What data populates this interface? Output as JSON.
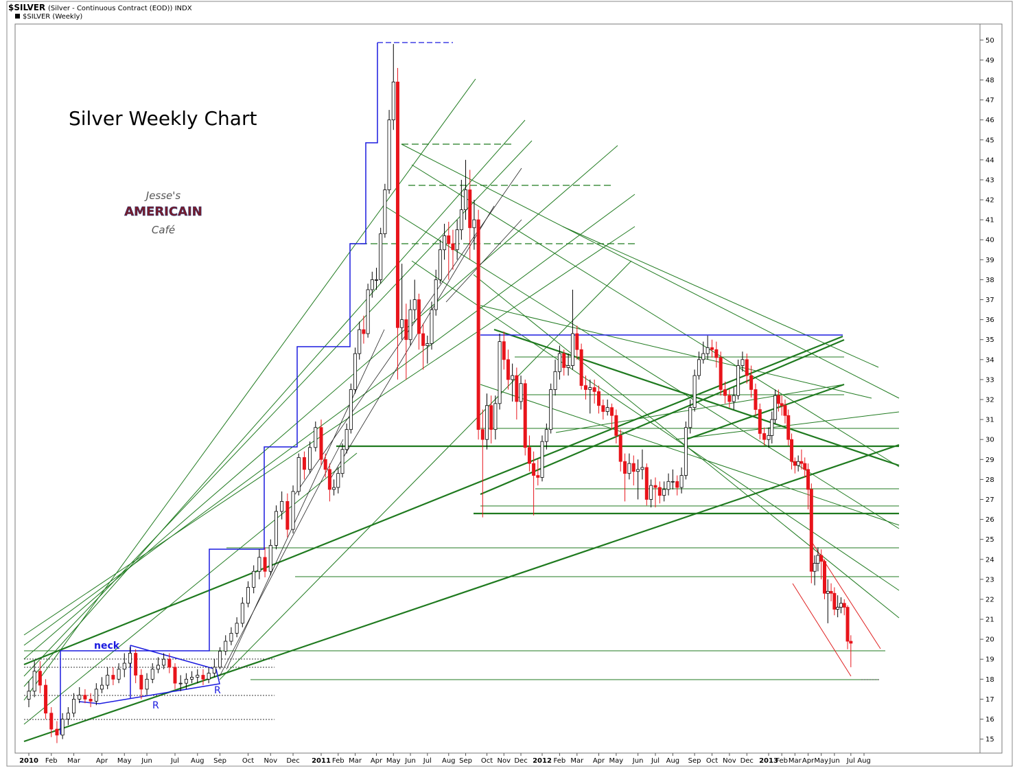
{
  "chart_data": {
    "type": "candlestick",
    "symbol": "$SILVER",
    "description": "(Silver - Continuous Contract (EOD)) INDX",
    "series_name": "$SILVER (Weekly)",
    "title": "Silver Weekly Chart",
    "logo": [
      "Jesse's",
      "AMERICAIN",
      "Café"
    ],
    "annotations": [
      "neck",
      "R",
      "R"
    ],
    "up_color": "#ffffff",
    "down_color": "#e8141b",
    "outline_color": "#000000",
    "ylim": [
      14.3,
      50.8
    ],
    "yticks": [
      15,
      16,
      17,
      18,
      19,
      20,
      21,
      22,
      23,
      24,
      25,
      26,
      27,
      28,
      29,
      30,
      31,
      32,
      33,
      34,
      35,
      36,
      37,
      38,
      39,
      40,
      41,
      42,
      43,
      44,
      45,
      46,
      47,
      48,
      49,
      50
    ],
    "categories": [
      "2010",
      null,
      null,
      null,
      "Feb",
      null,
      null,
      null,
      "Mar",
      null,
      null,
      null,
      null,
      "Apr",
      null,
      null,
      null,
      "May",
      null,
      null,
      null,
      "Jun",
      null,
      null,
      null,
      null,
      "Jul",
      null,
      null,
      null,
      "Aug",
      null,
      null,
      null,
      "Sep",
      null,
      null,
      null,
      null,
      "Oct",
      null,
      null,
      null,
      "Nov",
      null,
      null,
      null,
      "Dec",
      null,
      null,
      null,
      null,
      "2011",
      null,
      null,
      null,
      "Feb",
      null,
      null,
      null,
      "Mar",
      null,
      null,
      null,
      null,
      "Apr",
      null,
      null,
      null,
      "May",
      null,
      null,
      null,
      "Jun",
      null,
      null,
      null,
      "Jul",
      null,
      null,
      null,
      null,
      "Aug",
      null,
      null,
      null,
      "Sep",
      null,
      null,
      null,
      null,
      "Oct",
      null,
      null,
      null,
      "Nov",
      null,
      null,
      null,
      "Dec",
      null,
      null,
      null,
      null,
      "2012",
      null,
      null,
      null,
      "Feb",
      null,
      null,
      null,
      "Mar",
      null,
      null,
      null,
      null,
      "Apr",
      null,
      null,
      null,
      "May",
      null,
      null,
      null,
      null,
      "Jun",
      null,
      null,
      null,
      "Jul",
      null,
      null,
      null,
      "Aug",
      null,
      null,
      null,
      null,
      "Sep",
      null,
      null,
      null,
      "Oct",
      null,
      null,
      null,
      "Nov",
      null,
      null,
      null,
      "Dec",
      null,
      null,
      null,
      null,
      "2013",
      null,
      null,
      null,
      "Feb",
      null,
      null,
      null,
      "Mar",
      null,
      null,
      null,
      "Apr",
      null,
      null,
      null,
      "May",
      null,
      null,
      null,
      "Jun",
      null,
      null,
      null,
      null,
      "Jul",
      null,
      null,
      null,
      "Aug"
    ],
    "open": [
      17.0,
      17.4,
      18.4,
      17.7,
      16.3,
      15.5,
      15.2,
      16.0,
      16.3,
      17.0,
      17.2,
      17.0,
      16.9,
      17.5,
      17.7,
      18.2,
      18.0,
      18.5,
      18.8,
      19.3,
      18.2,
      17.5,
      18.0,
      18.5,
      18.7,
      19.0,
      18.6,
      17.8,
      17.8,
      18.0,
      18.1,
      18.2,
      18.0,
      18.3,
      18.6,
      19.4,
      19.9,
      20.3,
      20.8,
      21.8,
      22.6,
      23.4,
      24.1,
      23.4,
      24.7,
      26.4,
      26.9,
      25.5,
      27.4,
      29.1,
      28.5,
      29.6,
      30.6,
      29.0,
      28.5,
      27.5,
      27.6,
      28.3,
      29.5,
      30.5,
      32.5,
      34.3,
      35.5,
      35.3,
      37.5,
      38.0,
      38.0,
      40.3,
      42.5,
      46.0,
      47.9,
      35.6,
      36.0,
      35.0,
      36.5,
      37.0,
      35.3,
      34.7,
      34.8,
      36.5,
      38.0,
      39.5,
      40.2,
      39.8,
      39.5,
      40.5,
      41.5,
      42.5,
      40.6,
      41.0,
      30.5,
      30.0,
      31.7,
      30.5,
      31.8,
      34.9,
      34.0,
      33.0,
      33.2,
      31.9,
      32.8,
      29.6,
      28.8,
      28.2,
      28.1,
      29.9,
      30.5,
      32.5,
      33.4,
      34.3,
      33.6,
      33.7,
      35.3,
      34.5,
      32.7,
      32.5,
      32.6,
      32.4,
      31.7,
      31.4,
      31.6,
      31.2,
      30.2,
      28.9,
      28.3,
      28.8,
      28.4,
      28.5,
      28.6,
      27.0,
      27.7,
      27.6,
      27.2,
      27.5,
      27.9,
      27.9,
      27.6,
      28.2,
      30.6,
      31.6,
      33.2,
      34.0,
      34.3,
      34.6,
      34.5,
      34.1,
      32.5,
      32.2,
      31.9,
      32.2,
      33.7,
      34.0,
      33.2,
      32.5,
      31.5,
      30.3,
      30.0,
      30.2,
      31.0,
      32.2,
      31.8,
      31.7,
      31.2,
      30.0,
      28.9,
      28.7,
      28.9,
      28.8,
      28.5,
      27.5,
      23.4,
      23.8,
      24.2,
      23.9,
      22.3,
      22.4,
      22.3,
      21.5,
      21.6,
      21.8,
      21.6,
      19.9,
      null,
      null,
      null,
      null
    ],
    "high": [
      17.9,
      18.9,
      18.9,
      18.0,
      16.6,
      15.9,
      16.3,
      16.6,
      17.3,
      17.6,
      17.5,
      17.3,
      17.8,
      18.1,
      18.6,
      18.6,
      18.8,
      19.3,
      19.6,
      19.5,
      18.5,
      18.3,
      18.8,
      19.1,
      19.3,
      19.3,
      18.8,
      18.2,
      18.3,
      18.4,
      18.5,
      18.5,
      18.6,
      19.0,
      19.6,
      20.2,
      20.6,
      21.1,
      22.1,
      22.9,
      23.7,
      24.5,
      24.6,
      25.0,
      26.7,
      27.4,
      27.3,
      27.7,
      29.3,
      29.4,
      29.9,
      30.9,
      31.0,
      29.3,
      28.8,
      28.0,
      28.6,
      29.8,
      30.8,
      32.8,
      34.6,
      35.9,
      36.2,
      37.8,
      38.4,
      38.6,
      40.6,
      42.8,
      46.5,
      49.8,
      48.6,
      38.8,
      36.8,
      37.0,
      38.0,
      37.3,
      35.8,
      35.2,
      36.9,
      38.5,
      40.0,
      40.8,
      40.9,
      40.5,
      41.0,
      43.0,
      44.0,
      43.5,
      42.0,
      41.5,
      31.5,
      32.3,
      32.2,
      32.2,
      35.3,
      35.4,
      34.5,
      33.8,
      33.6,
      33.2,
      33.0,
      30.2,
      29.4,
      29.0,
      30.2,
      30.8,
      32.8,
      34.0,
      34.7,
      34.5,
      34.3,
      37.5,
      35.7,
      34.8,
      33.2,
      33.0,
      33.0,
      32.7,
      32.0,
      32.0,
      31.8,
      31.5,
      30.5,
      29.3,
      29.3,
      29.2,
      29.0,
      29.5,
      28.8,
      28.0,
      28.1,
      27.9,
      27.9,
      28.3,
      28.5,
      28.2,
      28.6,
      30.9,
      32.0,
      33.5,
      34.4,
      34.9,
      35.2,
      35.0,
      34.9,
      34.4,
      32.9,
      32.5,
      32.6,
      34.0,
      34.4,
      34.3,
      33.7,
      32.8,
      31.8,
      30.6,
      30.6,
      31.4,
      32.5,
      32.5,
      32.2,
      32.0,
      31.5,
      30.3,
      29.1,
      29.2,
      29.5,
      29.1,
      28.8,
      27.8,
      24.2,
      24.6,
      24.5,
      24.0,
      23.0,
      22.8,
      22.6,
      22.2,
      22.1,
      22.0,
      21.7,
      20.2,
      null,
      null,
      null,
      null
    ],
    "low": [
      16.6,
      17.1,
      17.3,
      16.0,
      15.1,
      14.8,
      15.0,
      15.7,
      16.1,
      16.8,
      16.8,
      16.6,
      16.7,
      17.3,
      17.5,
      17.7,
      17.8,
      18.1,
      18.6,
      17.8,
      17.0,
      17.2,
      17.8,
      18.3,
      18.5,
      18.3,
      17.5,
      17.4,
      17.5,
      17.8,
      17.8,
      17.7,
      17.8,
      18.1,
      18.5,
      19.2,
      19.7,
      20.1,
      20.6,
      21.6,
      22.3,
      23.0,
      23.1,
      23.2,
      24.5,
      26.0,
      25.1,
      25.3,
      27.2,
      28.0,
      28.3,
      29.4,
      28.7,
      28.1,
      26.9,
      27.2,
      27.3,
      28.1,
      29.3,
      30.3,
      32.3,
      34.0,
      34.8,
      35.1,
      37.1,
      37.5,
      37.8,
      40.1,
      42.3,
      45.5,
      33.0,
      35.0,
      33.0,
      34.7,
      36.0,
      34.5,
      33.5,
      33.8,
      34.5,
      36.2,
      37.8,
      39.0,
      38.0,
      38.5,
      39.0,
      40.0,
      41.0,
      39.0,
      39.5,
      30.0,
      26.1,
      29.5,
      29.8,
      30.0,
      31.5,
      33.5,
      32.5,
      31.9,
      31.0,
      31.5,
      29.2,
      28.4,
      26.2,
      27.7,
      27.9,
      29.5,
      30.3,
      32.2,
      33.0,
      33.2,
      33.2,
      33.5,
      34.0,
      32.5,
      32.0,
      31.3,
      31.8,
      31.3,
      31.0,
      31.2,
      30.5,
      29.8,
      28.4,
      26.9,
      28.0,
      27.7,
      27.0,
      28.0,
      26.7,
      26.6,
      26.6,
      26.8,
      26.9,
      27.2,
      27.5,
      27.2,
      27.3,
      28.0,
      30.3,
      31.4,
      33.0,
      33.8,
      34.0,
      34.1,
      33.6,
      32.2,
      31.8,
      31.6,
      31.5,
      32.0,
      33.4,
      32.8,
      32.1,
      31.2,
      30.0,
      29.7,
      29.6,
      29.8,
      30.8,
      31.4,
      31.2,
      30.8,
      29.7,
      28.5,
      28.3,
      28.4,
      28.5,
      28.1,
      26.5,
      22.8,
      22.7,
      23.4,
      23.0,
      22.0,
      20.8,
      21.9,
      21.2,
      21.1,
      21.3,
      21.2,
      19.5,
      18.6,
      null,
      null,
      null,
      null
    ],
    "close": [
      17.4,
      18.4,
      17.7,
      16.3,
      15.5,
      15.2,
      16.0,
      16.3,
      17.0,
      17.2,
      17.0,
      16.9,
      17.5,
      17.7,
      18.2,
      18.0,
      18.5,
      18.8,
      19.3,
      18.2,
      17.5,
      18.0,
      18.5,
      18.7,
      19.0,
      18.6,
      17.8,
      17.8,
      18.0,
      18.1,
      18.2,
      18.0,
      18.3,
      18.6,
      19.4,
      19.9,
      20.3,
      20.8,
      21.8,
      22.6,
      23.4,
      24.1,
      23.4,
      24.7,
      26.4,
      26.9,
      25.5,
      27.4,
      29.1,
      28.5,
      29.6,
      30.6,
      29.0,
      28.5,
      27.5,
      27.6,
      28.3,
      29.5,
      30.5,
      32.5,
      34.3,
      35.5,
      35.3,
      37.5,
      38.0,
      38.0,
      40.3,
      42.5,
      46.0,
      47.9,
      35.6,
      36.0,
      35.0,
      36.5,
      37.0,
      35.3,
      34.7,
      34.8,
      36.5,
      38.0,
      39.5,
      40.2,
      39.8,
      39.5,
      40.5,
      41.5,
      42.5,
      40.6,
      41.0,
      30.5,
      30.0,
      31.7,
      30.5,
      31.8,
      34.9,
      34.0,
      33.0,
      33.2,
      31.9,
      32.8,
      29.6,
      28.8,
      28.2,
      28.1,
      29.9,
      30.5,
      32.5,
      33.4,
      34.3,
      33.6,
      33.7,
      35.3,
      34.5,
      32.7,
      32.5,
      32.6,
      32.4,
      31.7,
      31.4,
      31.6,
      31.2,
      30.2,
      28.9,
      28.3,
      28.8,
      28.4,
      28.5,
      28.6,
      27.0,
      27.7,
      27.6,
      27.2,
      27.5,
      27.9,
      27.9,
      27.6,
      28.2,
      30.6,
      31.6,
      33.2,
      34.0,
      34.3,
      34.6,
      34.5,
      34.1,
      32.5,
      32.2,
      31.9,
      32.2,
      33.7,
      34.0,
      33.2,
      32.5,
      31.5,
      30.3,
      30.0,
      30.2,
      31.0,
      32.2,
      31.8,
      31.7,
      31.2,
      30.0,
      28.9,
      28.7,
      28.9,
      28.8,
      28.5,
      27.5,
      23.4,
      23.8,
      24.2,
      23.9,
      22.3,
      22.4,
      22.3,
      21.5,
      21.6,
      21.8,
      21.6,
      19.9,
      19.8,
      null,
      null,
      null,
      null
    ]
  }
}
